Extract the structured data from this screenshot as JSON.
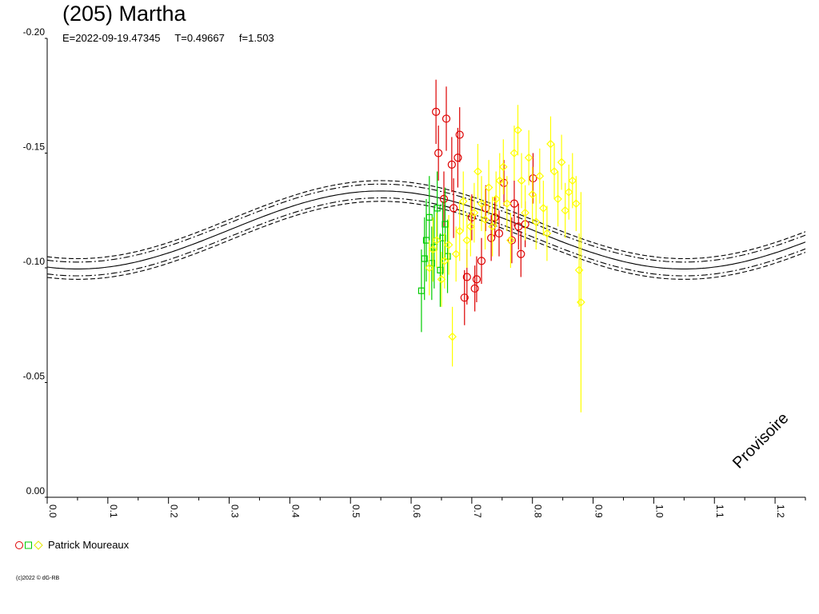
{
  "header": {
    "title": "(205) Martha",
    "subtitle": "E=2022-09-19.47345     T=0.49667     f=1.503"
  },
  "legend": {
    "observer": "Patrick Moureaux"
  },
  "footer": {
    "copyright": "(c)2022 © dG-RB"
  },
  "watermark": "Provisoire",
  "colors": {
    "fit": "#000000",
    "series_red": "#dd0000",
    "series_green": "#00cc00",
    "series_yellow": "#ffff00"
  },
  "chart_data": {
    "type": "scatter",
    "title": "(205) Martha",
    "xlim": [
      0.0,
      1.25
    ],
    "ylim": [
      0.0,
      -0.2
    ],
    "x_ticks": [
      "0.0",
      "0.1",
      "0.2",
      "0.3",
      "0.4",
      "0.5",
      "0.6",
      "0.7",
      "0.8",
      "0.9",
      "1.0",
      "1.1",
      "1.2"
    ],
    "y_ticks": [
      "0.00",
      "-0.05",
      "-0.10",
      "-0.15",
      "-0.20"
    ],
    "x_tick_values": [
      0.0,
      0.1,
      0.2,
      0.3,
      0.4,
      0.5,
      0.6,
      0.7,
      0.8,
      0.9,
      1.0,
      1.1,
      1.2
    ],
    "y_tick_values": [
      0.0,
      -0.05,
      -0.1,
      -0.15,
      -0.2
    ],
    "fit_curve": {
      "mean": -0.1165,
      "amplitude": 0.017,
      "phase_of_min": 0.05,
      "period": 1.0
    },
    "envelope_offsets": {
      "dashed": 0.0045,
      "dashdot": 0.003
    },
    "series": [
      {
        "marker": "circle",
        "color": "red",
        "points": [
          {
            "x": 0.641,
            "y": -0.168,
            "e": 0.014
          },
          {
            "x": 0.645,
            "y": -0.15,
            "e": 0.012
          },
          {
            "x": 0.654,
            "y": -0.13,
            "e": 0.012
          },
          {
            "x": 0.658,
            "y": -0.165,
            "e": 0.014
          },
          {
            "x": 0.667,
            "y": -0.145,
            "e": 0.012
          },
          {
            "x": 0.67,
            "y": -0.126,
            "e": 0.013
          },
          {
            "x": 0.677,
            "y": -0.148,
            "e": 0.013
          },
          {
            "x": 0.68,
            "y": -0.158,
            "e": 0.012
          },
          {
            "x": 0.688,
            "y": -0.087,
            "e": 0.012
          },
          {
            "x": 0.692,
            "y": -0.096,
            "e": 0.012
          },
          {
            "x": 0.7,
            "y": -0.122,
            "e": 0.01
          },
          {
            "x": 0.705,
            "y": -0.091,
            "e": 0.01
          },
          {
            "x": 0.708,
            "y": -0.095,
            "e": 0.01
          },
          {
            "x": 0.716,
            "y": -0.103,
            "e": 0.01
          },
          {
            "x": 0.723,
            "y": -0.126,
            "e": 0.01
          },
          {
            "x": 0.732,
            "y": -0.113,
            "e": 0.01
          },
          {
            "x": 0.738,
            "y": -0.122,
            "e": 0.009
          },
          {
            "x": 0.745,
            "y": -0.115,
            "e": 0.01
          },
          {
            "x": 0.753,
            "y": -0.137,
            "e": 0.01
          },
          {
            "x": 0.766,
            "y": -0.112,
            "e": 0.01
          },
          {
            "x": 0.77,
            "y": -0.128,
            "e": 0.01
          },
          {
            "x": 0.777,
            "y": -0.118,
            "e": 0.01
          },
          {
            "x": 0.781,
            "y": -0.106,
            "e": 0.01
          },
          {
            "x": 0.788,
            "y": -0.119,
            "e": 0.01
          },
          {
            "x": 0.801,
            "y": -0.139,
            "e": 0.011
          }
        ]
      },
      {
        "marker": "square",
        "color": "green",
        "points": [
          {
            "x": 0.617,
            "y": -0.09,
            "e": 0.018
          },
          {
            "x": 0.622,
            "y": -0.104,
            "e": 0.018
          },
          {
            "x": 0.625,
            "y": -0.112,
            "e": 0.018
          },
          {
            "x": 0.63,
            "y": -0.122,
            "e": 0.018
          },
          {
            "x": 0.634,
            "y": -0.102,
            "e": 0.016
          },
          {
            "x": 0.638,
            "y": -0.109,
            "e": 0.018
          },
          {
            "x": 0.643,
            "y": -0.126,
            "e": 0.016
          },
          {
            "x": 0.648,
            "y": -0.099,
            "e": 0.016
          },
          {
            "x": 0.652,
            "y": -0.113,
            "e": 0.016
          },
          {
            "x": 0.656,
            "y": -0.119,
            "e": 0.016
          },
          {
            "x": 0.66,
            "y": -0.105,
            "e": 0.016
          }
        ]
      },
      {
        "marker": "diamond",
        "color": "yellow",
        "points": [
          {
            "x": 0.63,
            "y": -0.1,
            "e": 0.012
          },
          {
            "x": 0.636,
            "y": -0.108,
            "e": 0.014
          },
          {
            "x": 0.642,
            "y": -0.112,
            "e": 0.012
          },
          {
            "x": 0.65,
            "y": -0.095,
            "e": 0.012
          },
          {
            "x": 0.655,
            "y": -0.103,
            "e": 0.012
          },
          {
            "x": 0.662,
            "y": -0.11,
            "e": 0.013
          },
          {
            "x": 0.668,
            "y": -0.07,
            "e": 0.013
          },
          {
            "x": 0.674,
            "y": -0.106,
            "e": 0.012
          },
          {
            "x": 0.68,
            "y": -0.116,
            "e": 0.013
          },
          {
            "x": 0.686,
            "y": -0.129,
            "e": 0.013
          },
          {
            "x": 0.692,
            "y": -0.112,
            "e": 0.012
          },
          {
            "x": 0.698,
            "y": -0.118,
            "e": 0.013
          },
          {
            "x": 0.704,
            "y": -0.124,
            "e": 0.013
          },
          {
            "x": 0.71,
            "y": -0.142,
            "e": 0.012
          },
          {
            "x": 0.716,
            "y": -0.128,
            "e": 0.012
          },
          {
            "x": 0.722,
            "y": -0.121,
            "e": 0.013
          },
          {
            "x": 0.728,
            "y": -0.135,
            "e": 0.012
          },
          {
            "x": 0.734,
            "y": -0.118,
            "e": 0.013
          },
          {
            "x": 0.74,
            "y": -0.13,
            "e": 0.012
          },
          {
            "x": 0.746,
            "y": -0.138,
            "e": 0.012
          },
          {
            "x": 0.752,
            "y": -0.144,
            "e": 0.012
          },
          {
            "x": 0.758,
            "y": -0.128,
            "e": 0.012
          },
          {
            "x": 0.764,
            "y": -0.112,
            "e": 0.012
          },
          {
            "x": 0.77,
            "y": -0.15,
            "e": 0.012
          },
          {
            "x": 0.776,
            "y": -0.16,
            "e": 0.011
          },
          {
            "x": 0.782,
            "y": -0.138,
            "e": 0.012
          },
          {
            "x": 0.788,
            "y": -0.124,
            "e": 0.012
          },
          {
            "x": 0.794,
            "y": -0.148,
            "e": 0.012
          },
          {
            "x": 0.8,
            "y": -0.132,
            "e": 0.012
          },
          {
            "x": 0.806,
            "y": -0.12,
            "e": 0.012
          },
          {
            "x": 0.812,
            "y": -0.14,
            "e": 0.012
          },
          {
            "x": 0.818,
            "y": -0.126,
            "e": 0.012
          },
          {
            "x": 0.824,
            "y": -0.115,
            "e": 0.012
          },
          {
            "x": 0.83,
            "y": -0.154,
            "e": 0.012
          },
          {
            "x": 0.836,
            "y": -0.142,
            "e": 0.012
          },
          {
            "x": 0.842,
            "y": -0.13,
            "e": 0.012
          },
          {
            "x": 0.848,
            "y": -0.146,
            "e": 0.012
          },
          {
            "x": 0.854,
            "y": -0.125,
            "e": 0.012
          },
          {
            "x": 0.86,
            "y": -0.133,
            "e": 0.012
          },
          {
            "x": 0.866,
            "y": -0.138,
            "e": 0.012
          },
          {
            "x": 0.872,
            "y": -0.128,
            "e": 0.012
          },
          {
            "x": 0.877,
            "y": -0.099,
            "e": 0.016
          },
          {
            "x": 0.88,
            "y": -0.085,
            "e": 0.048
          }
        ]
      }
    ]
  }
}
